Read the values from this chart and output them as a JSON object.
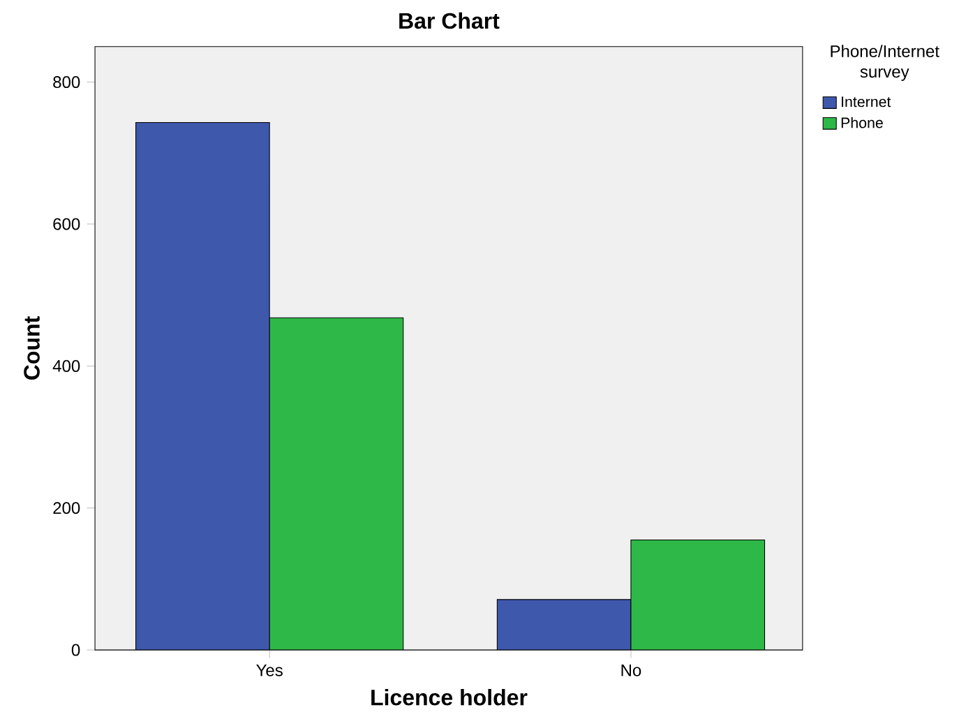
{
  "chart_data": {
    "type": "bar",
    "title": "Bar Chart",
    "xlabel": "Licence holder",
    "ylabel": "Count",
    "legend_title": "Phone/Internet survey",
    "categories": [
      "Yes",
      "No"
    ],
    "series": [
      {
        "name": "Internet",
        "color": "#3e58ac",
        "values": [
          743,
          71
        ]
      },
      {
        "name": "Phone",
        "color": "#2eb848",
        "values": [
          468,
          155
        ]
      }
    ],
    "ylim": [
      0,
      850
    ],
    "yticks": [
      0,
      200,
      400,
      600,
      800
    ],
    "grid": false,
    "legend": "top right"
  }
}
